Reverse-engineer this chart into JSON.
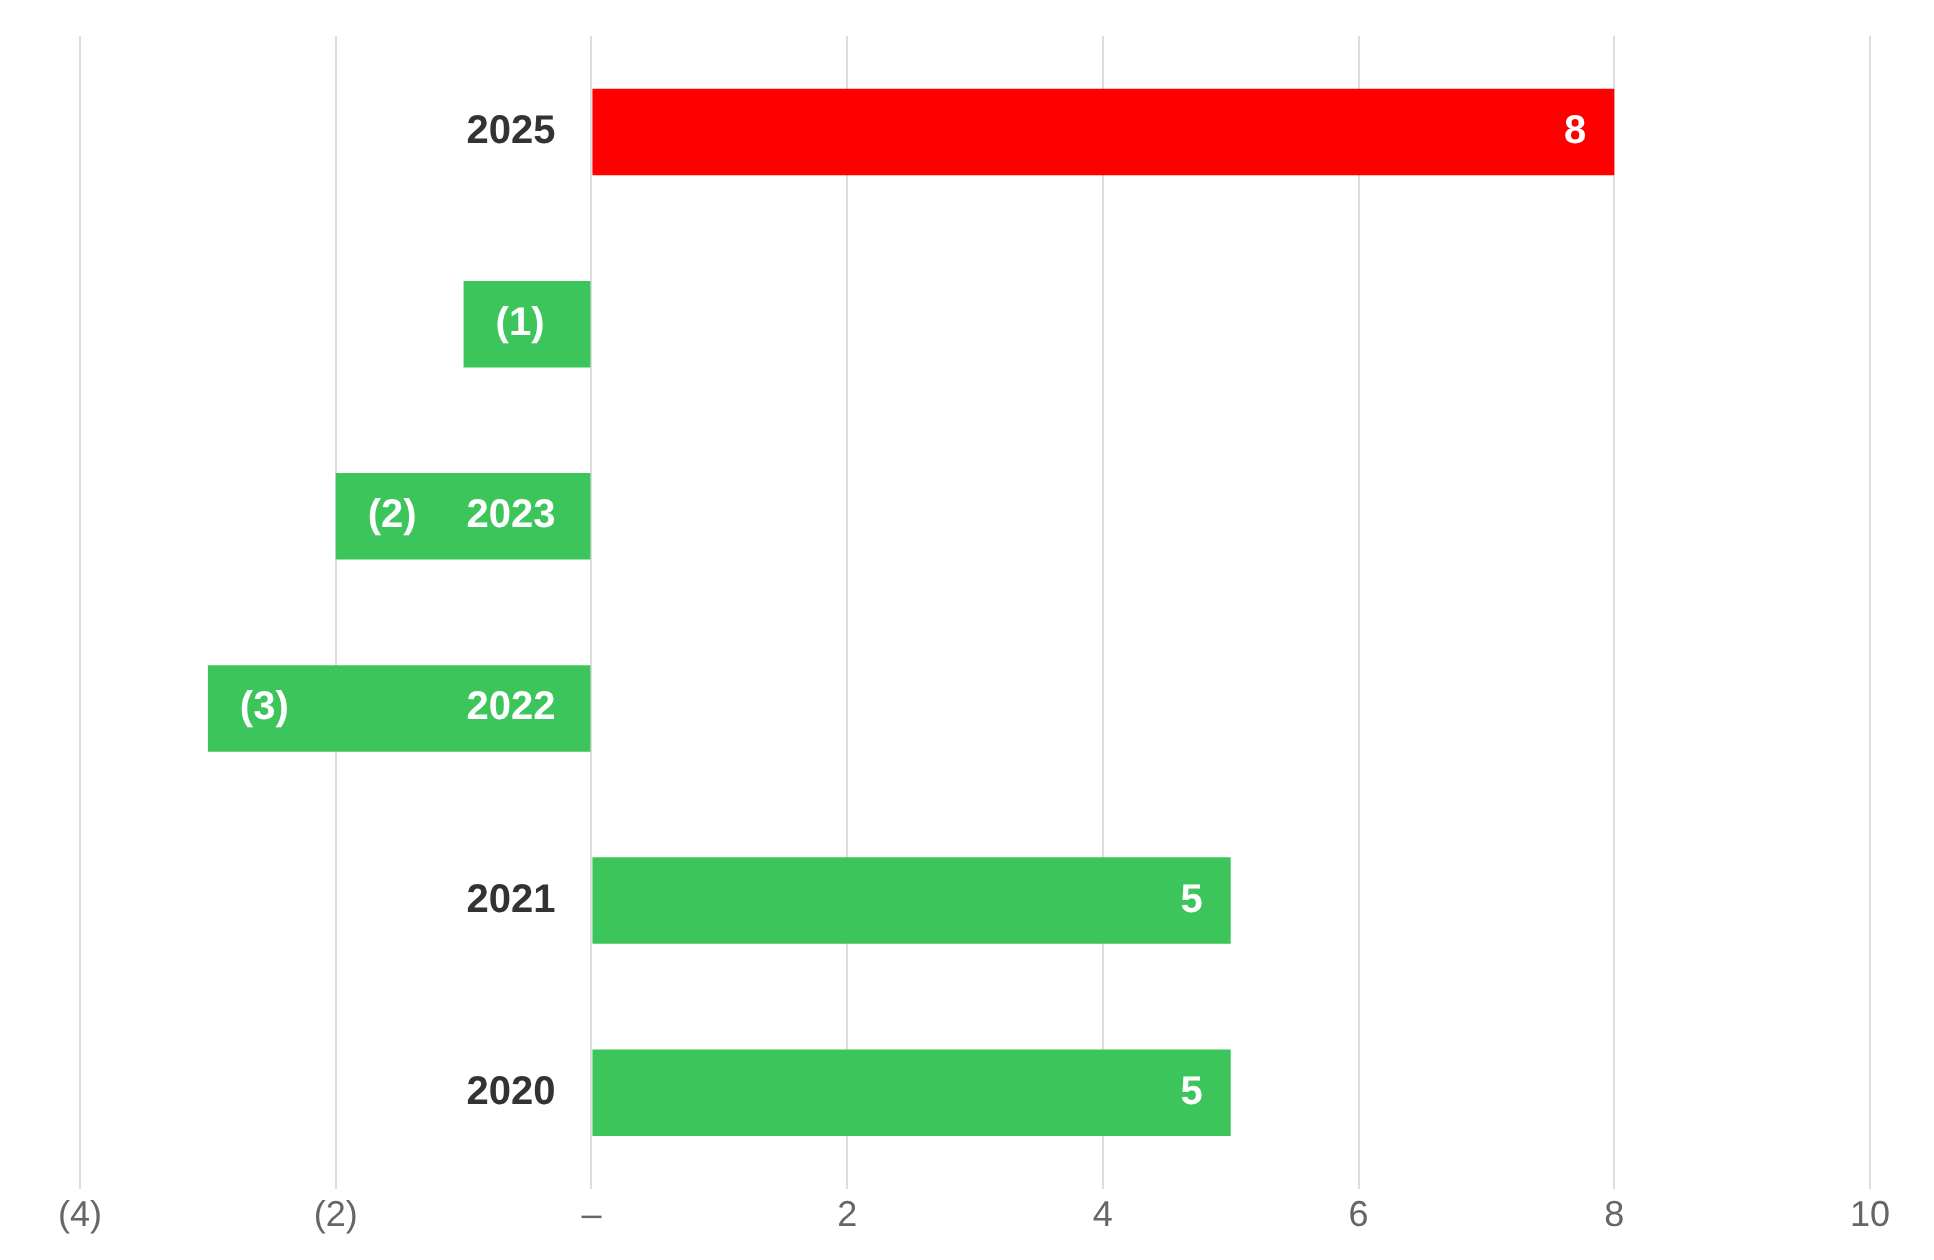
{
  "chart_data": {
    "type": "bar",
    "orientation": "horizontal",
    "categories": [
      "2025",
      null,
      "2023",
      "2022",
      "2021",
      "2020"
    ],
    "values": [
      8,
      -1,
      -2,
      -3,
      5,
      5
    ],
    "colors": [
      "#fe0000",
      "#3cc55a",
      "#3cc55a",
      "#3cc55a",
      "#3cc55a",
      "#3cc55a"
    ],
    "value_labels": [
      "8",
      "(1)",
      "(2)",
      "(3)",
      "5",
      "5"
    ],
    "xlim": [
      -4,
      10
    ],
    "xticks": [
      {
        "value": -4,
        "label": "(4)"
      },
      {
        "value": -2,
        "label": "(2)"
      },
      {
        "value": 0,
        "label": "–"
      },
      2,
      4,
      6,
      8,
      10
    ],
    "grid": "x",
    "legend": false
  }
}
